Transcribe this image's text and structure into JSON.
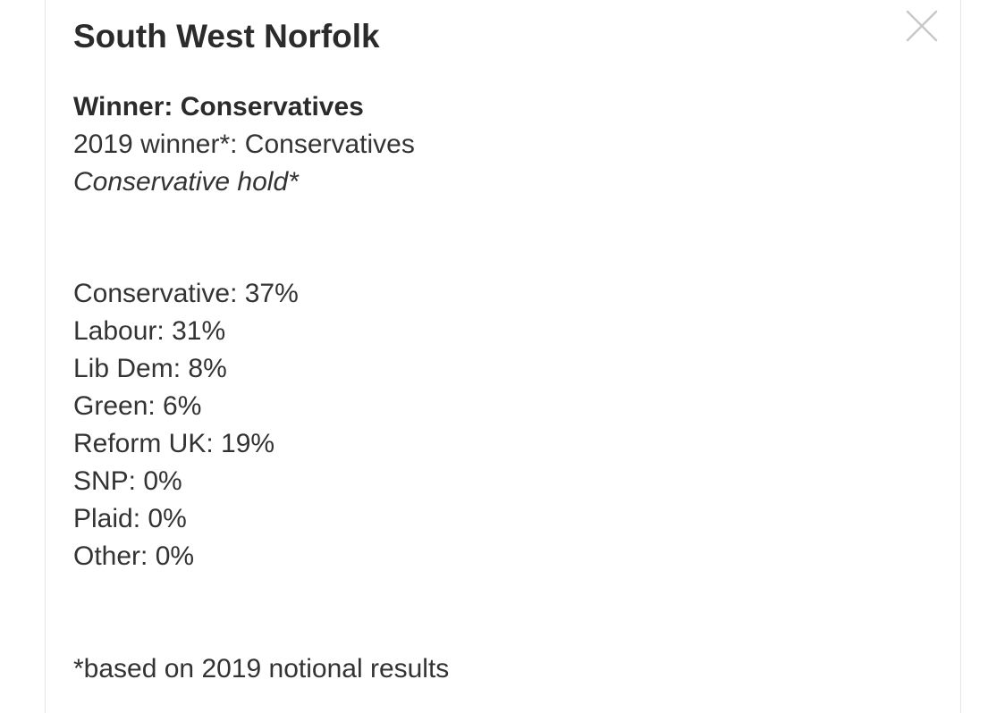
{
  "panel": {
    "title": "South West Norfolk",
    "winner": "Winner: Conservatives",
    "previous_winner": "2019 winner*: Conservatives",
    "status": "Conservative hold*",
    "results": [
      {
        "text": "Conservative: 37%"
      },
      {
        "text": "Labour: 31%"
      },
      {
        "text": "Lib Dem: 8%"
      },
      {
        "text": "Green: 6%"
      },
      {
        "text": "Reform UK: 19%"
      },
      {
        "text": "SNP: 0%"
      },
      {
        "text": "Plaid: 0%"
      },
      {
        "text": "Other: 0%"
      }
    ],
    "footnote": "*based on 2019 notional results",
    "close_icon": "close-icon",
    "close_icon_color": "#c8c8c8"
  }
}
